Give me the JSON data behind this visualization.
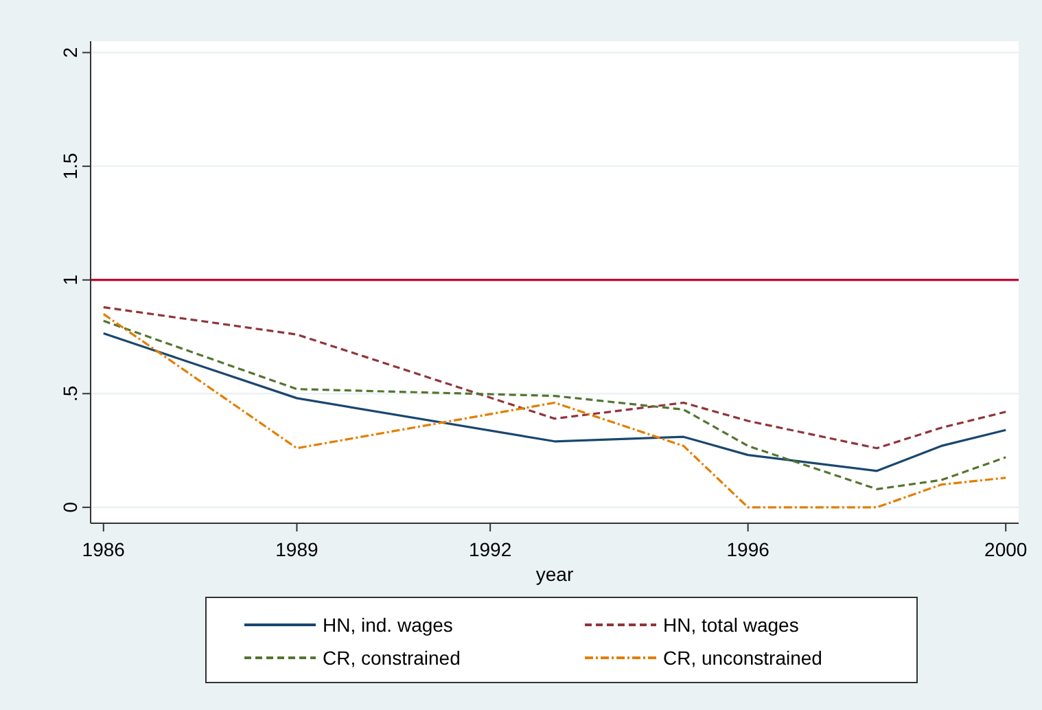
{
  "chart_data": {
    "type": "line",
    "xlabel": "year",
    "x": [
      1986,
      1989,
      1993,
      1995,
      1996,
      1998,
      1999,
      2000
    ],
    "series": [
      {
        "name": "HN, ind. wages",
        "color": "#1a476f",
        "line_style": "solid",
        "values": [
          0.765,
          0.48,
          0.29,
          0.31,
          0.23,
          0.16,
          0.27,
          0.34
        ]
      },
      {
        "name": "HN, total wages",
        "color": "#90353b",
        "line_style": "dashed",
        "values": [
          0.88,
          0.76,
          0.39,
          0.46,
          0.38,
          0.26,
          0.35,
          0.42
        ]
      },
      {
        "name": "CR, constrained",
        "color": "#55752f",
        "line_style": "dashed",
        "values": [
          0.82,
          0.52,
          0.49,
          0.43,
          0.27,
          0.08,
          0.12,
          0.22
        ]
      },
      {
        "name": "CR, unconstrained",
        "color": "#e37e00",
        "line_style": "dotted",
        "values": [
          0.85,
          0.26,
          0.46,
          0.27,
          0,
          0,
          0.1,
          0.13
        ]
      }
    ],
    "xlim": [
      1985.8,
      2000.2
    ],
    "xticks": [
      1986,
      1989,
      1992,
      1996,
      2000
    ],
    "ylim": [
      -0.07,
      2.05
    ],
    "yticks": [
      {
        "value": 0,
        "label": "0"
      },
      {
        "value": 0.5,
        "label": ".5"
      },
      {
        "value": 1,
        "label": "1"
      },
      {
        "value": 1.5,
        "label": "1.5"
      },
      {
        "value": 2,
        "label": "2"
      }
    ],
    "ref_lines": [
      {
        "axis": "y",
        "value": 1,
        "color": "#c10534"
      }
    ],
    "grid": "y",
    "legend": "bottom",
    "marker": "none"
  }
}
